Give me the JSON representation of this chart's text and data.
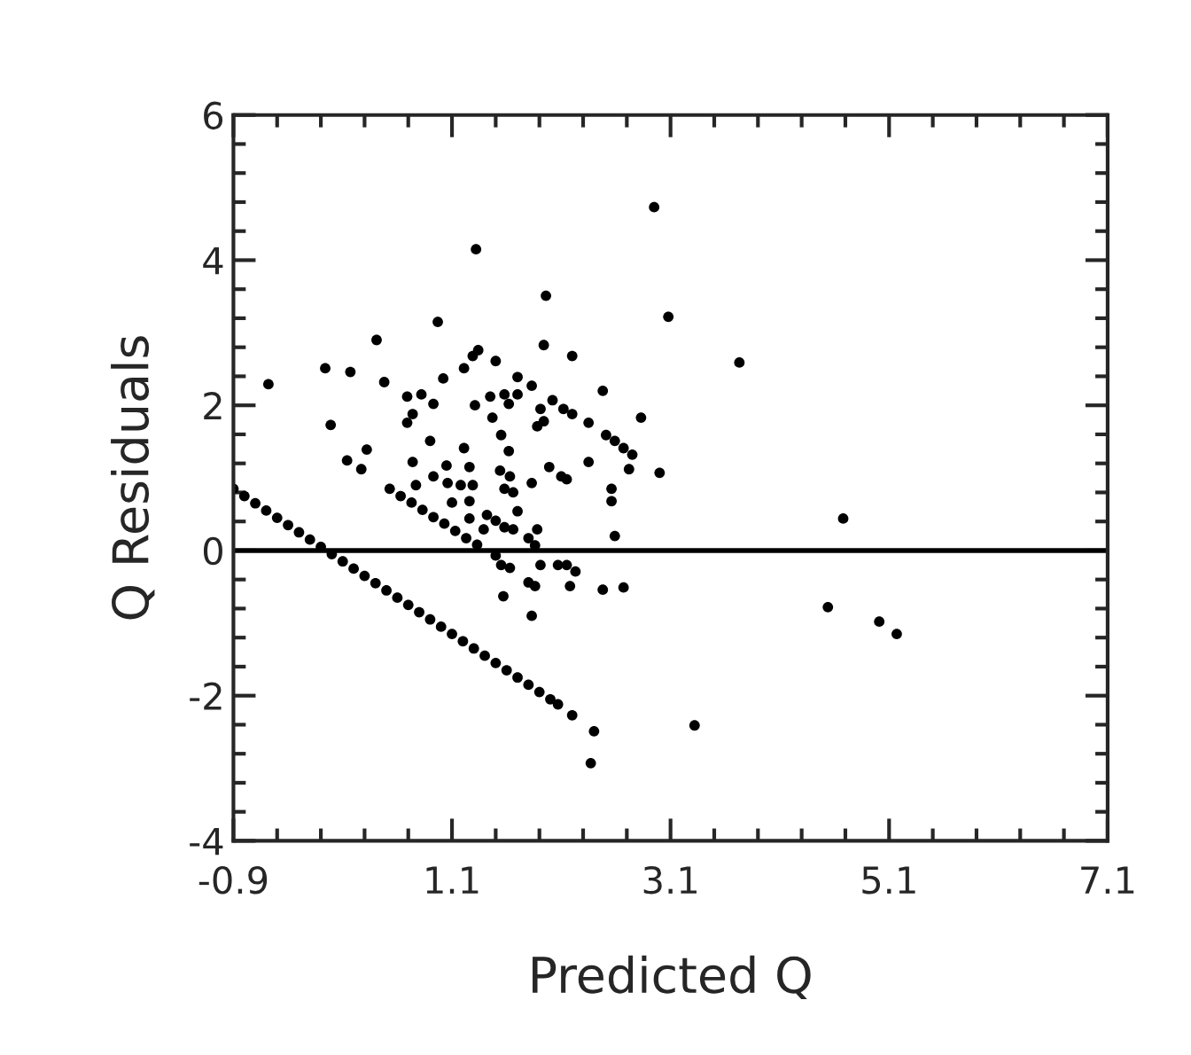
{
  "chart_data": {
    "type": "scatter",
    "xlabel": "Predicted Q",
    "ylabel": "Q Residuals",
    "xlim": [
      -0.9,
      7.1
    ],
    "ylim": [
      -4,
      6
    ],
    "xticks": [
      {
        "value": -0.9,
        "label": "-0.9"
      },
      {
        "value": 1.1,
        "label": "1.1"
      },
      {
        "value": 3.1,
        "label": "3.1"
      },
      {
        "value": 5.1,
        "label": "5.1"
      },
      {
        "value": 7.1,
        "label": "7.1"
      }
    ],
    "yticks": [
      {
        "value": -4,
        "label": "-4"
      },
      {
        "value": -2,
        "label": "-2"
      },
      0,
      2,
      4,
      6
    ],
    "marker": "circle",
    "grid": false,
    "ref_lines": [
      {
        "axis": "y",
        "value": 0,
        "color": "#000000"
      }
    ],
    "series": [
      {
        "color": "#000000",
        "x": [
          -0.9,
          -0.8,
          -0.7,
          -0.6,
          -0.5,
          -0.4,
          -0.3,
          -0.2,
          -0.1,
          0.0,
          0.1,
          0.2,
          0.3,
          0.4,
          0.5,
          0.6,
          0.7,
          0.8,
          0.9,
          1.0,
          1.1,
          1.2,
          1.3,
          1.4,
          1.5,
          1.6,
          1.7,
          1.8,
          1.9,
          2.0,
          2.07
        ],
        "values": [
          0.85,
          0.75,
          0.65,
          0.55,
          0.45,
          0.35,
          0.25,
          0.15,
          0.05,
          -0.05,
          -0.15,
          -0.25,
          -0.35,
          -0.45,
          -0.55,
          -0.65,
          -0.75,
          -0.85,
          -0.95,
          -1.05,
          -1.15,
          -1.25,
          -1.35,
          -1.45,
          -1.55,
          -1.65,
          -1.75,
          -1.85,
          -1.95,
          -2.05,
          -2.12
        ]
      },
      {
        "color": "#000000",
        "x": [
          0.53,
          0.63,
          0.73,
          0.83,
          0.93,
          1.03,
          1.13,
          1.23,
          1.33
        ],
        "values": [
          0.85,
          0.75,
          0.66,
          0.56,
          0.46,
          0.37,
          0.27,
          0.17,
          0.08
        ]
      },
      {
        "color": "#000000",
        "x": [
          -0.58,
          -0.06,
          0.17,
          -0.01,
          0.41,
          0.48,
          0.14,
          0.32,
          0.27,
          0.97,
          1.32,
          2.95,
          1.96,
          3.08,
          3.73,
          1.94,
          2.2,
          1.34,
          1.29,
          1.21,
          1.5,
          1.02,
          0.69,
          0.82,
          0.74,
          0.69,
          0.93,
          1.31,
          1.45,
          1.58,
          1.7,
          1.62,
          1.47,
          1.83,
          1.7,
          1.91,
          1.94,
          1.88,
          2.02,
          2.12,
          2.2,
          2.35,
          2.48,
          2.51,
          2.59,
          2.67,
          2.83,
          2.75,
          3.0,
          2.72,
          2.35,
          2.56,
          2.56,
          2.59,
          0.9,
          1.21,
          1.55,
          1.62,
          0.74,
          1.05,
          1.26,
          1.54,
          1.63,
          1.83,
          1.99,
          2.1,
          2.15,
          0.77,
          0.93,
          1.06,
          1.18,
          1.29,
          1.66,
          1.58,
          1.1,
          1.26,
          1.7,
          1.26,
          1.42,
          1.5,
          1.58,
          1.66,
          1.88,
          1.39,
          1.8,
          1.86,
          1.5,
          1.55,
          1.63,
          1.91,
          2.07,
          2.15,
          2.23,
          1.8,
          1.86,
          2.18,
          2.48,
          2.67,
          1.57,
          1.83,
          2.2,
          2.4,
          3.32,
          2.37,
          4.54,
          4.68,
          5.01,
          5.17
        ],
        "values": [
          2.29,
          2.51,
          2.46,
          1.73,
          2.9,
          2.32,
          1.24,
          1.39,
          1.12,
          3.15,
          4.15,
          4.73,
          3.51,
          3.22,
          2.59,
          2.83,
          2.68,
          2.76,
          2.68,
          2.51,
          2.61,
          2.37,
          2.12,
          2.15,
          1.88,
          1.76,
          2.02,
          2.0,
          2.12,
          2.15,
          2.15,
          2.02,
          1.83,
          2.27,
          2.39,
          1.95,
          1.78,
          1.71,
          2.07,
          1.95,
          1.88,
          1.76,
          2.2,
          1.59,
          1.51,
          1.41,
          1.83,
          1.32,
          1.07,
          1.12,
          1.22,
          0.85,
          0.68,
          0.2,
          1.51,
          1.41,
          1.59,
          1.37,
          1.22,
          1.17,
          1.15,
          1.1,
          1.02,
          0.93,
          1.15,
          1.02,
          0.98,
          0.9,
          1.02,
          0.93,
          0.9,
          0.9,
          0.8,
          0.85,
          0.66,
          0.68,
          0.54,
          0.44,
          0.49,
          0.41,
          0.32,
          0.29,
          0.29,
          0.29,
          0.17,
          0.07,
          -0.07,
          -0.2,
          -0.24,
          -0.2,
          -0.2,
          -0.2,
          -0.29,
          -0.44,
          -0.49,
          -0.49,
          -0.54,
          -0.51,
          -0.63,
          -0.9,
          -2.27,
          -2.49,
          -2.41,
          -2.93,
          -0.78,
          0.44,
          -0.98,
          -1.15
        ]
      }
    ]
  }
}
